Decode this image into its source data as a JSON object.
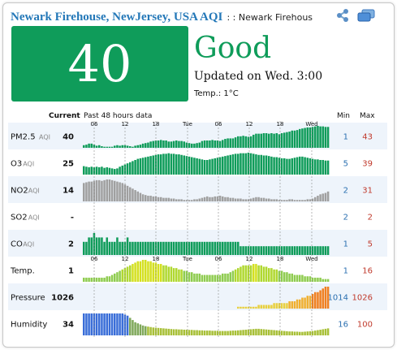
{
  "header": {
    "title": "Newark Firehouse, NewJersey, USA AQI",
    "subtitle": ": : Newark Firehous"
  },
  "current": {
    "aqi": "40",
    "level": "Good",
    "updated": "Updated on Wed. 3:00",
    "temperature": "Temp.: 1°C",
    "color": "#0f9c5a"
  },
  "table": {
    "current_label": "Current",
    "past_label": "Past 48 hours data",
    "min_label": "Min",
    "max_label": "Max",
    "ticks": [
      "06",
      "12",
      "18",
      "Tue",
      "06",
      "12",
      "18",
      "Wed"
    ],
    "rows": [
      {
        "name": "PM2.5",
        "sub": "AQI",
        "value": "40",
        "min": "1",
        "max": "43",
        "color": "#0f9c5a",
        "bars": [
          5,
          6,
          8,
          8,
          6,
          4,
          5,
          3,
          2,
          2,
          2,
          2,
          4,
          5,
          4,
          5,
          5,
          4,
          3,
          2,
          4,
          5,
          6,
          8,
          9,
          10,
          12,
          13,
          14,
          14,
          15,
          14,
          14,
          12,
          12,
          13,
          14,
          13,
          13,
          12,
          10,
          9,
          8,
          8,
          9,
          10,
          13,
          14,
          14,
          14,
          15,
          14,
          14,
          13,
          15,
          17,
          18,
          18,
          18,
          20,
          22,
          22,
          23,
          22,
          21,
          22,
          25,
          27,
          27,
          27,
          28,
          28,
          27,
          28,
          27,
          28,
          26,
          28,
          29,
          30,
          31,
          33,
          33,
          34,
          36,
          37,
          38,
          39,
          39,
          40,
          41,
          42,
          41,
          41,
          40,
          40
        ]
      },
      {
        "name": "O3",
        "sub": "AQI",
        "value": "25",
        "min": "5",
        "max": "39",
        "color": "#0f9c5a",
        "bars": [
          15,
          14,
          13,
          14,
          13,
          14,
          13,
          14,
          12,
          13,
          12,
          11,
          10,
          11,
          14,
          16,
          18,
          20,
          22,
          24,
          26,
          28,
          29,
          30,
          31,
          32,
          33,
          34,
          35,
          36,
          36,
          37,
          37,
          38,
          37,
          37,
          36,
          36,
          35,
          34,
          33,
          32,
          31,
          30,
          29,
          28,
          27,
          26,
          26,
          27,
          28,
          29,
          30,
          31,
          32,
          33,
          34,
          35,
          36,
          37,
          37,
          38,
          38,
          38,
          39,
          38,
          37,
          36,
          35,
          35,
          34,
          34,
          33,
          32,
          31,
          31,
          30,
          29,
          29,
          28,
          28,
          29,
          30,
          31,
          32,
          32,
          31,
          30,
          29,
          28,
          27,
          27,
          26,
          26,
          25,
          25
        ]
      },
      {
        "name": "NO2",
        "sub": "AQI",
        "value": "14",
        "min": "2",
        "max": "31",
        "color": "#a0a0a0",
        "bars": [
          26,
          27,
          28,
          28,
          29,
          30,
          30,
          29,
          30,
          31,
          31,
          30,
          29,
          28,
          27,
          26,
          24,
          22,
          20,
          18,
          16,
          14,
          12,
          10,
          9,
          8,
          8,
          7,
          7,
          6,
          6,
          5,
          5,
          5,
          4,
          4,
          3,
          3,
          3,
          2,
          2,
          2,
          2,
          3,
          3,
          4,
          5,
          6,
          7,
          6,
          6,
          7,
          7,
          8,
          7,
          6,
          6,
          5,
          5,
          4,
          4,
          4,
          3,
          3,
          3,
          4,
          5,
          6,
          6,
          5,
          5,
          4,
          4,
          3,
          3,
          3,
          2,
          2,
          2,
          2,
          3,
          3,
          2,
          2,
          2,
          2,
          2,
          3,
          3,
          4,
          6,
          8,
          10,
          11,
          12,
          14
        ]
      },
      {
        "name": "SO2",
        "sub": "AQI",
        "value": "-",
        "min": "2",
        "max": "2",
        "color": "#a0a0a0",
        "bars": []
      },
      {
        "name": "CO",
        "sub": "AQI",
        "value": "2",
        "min": "1",
        "max": "5",
        "color": "#0f9c5a",
        "bars": [
          3,
          3,
          4,
          4,
          5,
          4,
          4,
          4,
          3,
          4,
          3,
          3,
          3,
          4,
          3,
          3,
          3,
          4,
          3,
          3,
          3,
          3,
          3,
          3,
          3,
          3,
          3,
          3,
          3,
          3,
          3,
          3,
          3,
          3,
          3,
          3,
          3,
          3,
          3,
          3,
          3,
          3,
          3,
          3,
          3,
          3,
          3,
          3,
          3,
          3,
          3,
          3,
          3,
          3,
          3,
          3,
          3,
          3,
          3,
          3,
          3,
          2,
          2,
          2,
          2,
          2,
          2,
          2,
          2,
          2,
          2,
          2,
          2,
          2,
          2,
          2,
          2,
          2,
          2,
          2,
          2,
          2,
          2,
          2,
          2,
          2,
          2,
          2,
          2,
          2,
          2,
          2,
          2,
          2,
          2,
          2
        ]
      },
      {
        "name": "Temp.",
        "sub": "",
        "value": "1",
        "min": "1",
        "max": "16",
        "color": "#9bd24a",
        "bars": [
          3,
          3,
          3,
          3,
          3,
          3,
          3,
          3,
          3,
          4,
          4,
          5,
          6,
          7,
          8,
          9,
          10,
          11,
          12,
          13,
          14,
          15,
          15,
          16,
          16,
          15,
          15,
          14,
          14,
          13,
          13,
          12,
          12,
          11,
          11,
          10,
          10,
          9,
          9,
          8,
          8,
          7,
          7,
          6,
          6,
          6,
          5,
          5,
          5,
          5,
          5,
          5,
          5,
          5,
          6,
          6,
          6,
          7,
          8,
          9,
          10,
          11,
          12,
          12,
          12,
          12,
          13,
          13,
          12,
          12,
          11,
          11,
          10,
          10,
          9,
          9,
          8,
          8,
          7,
          7,
          6,
          6,
          5,
          5,
          5,
          5,
          4,
          4,
          4,
          3,
          3,
          3,
          3,
          2,
          2,
          2
        ]
      },
      {
        "name": "Pressure",
        "sub": "",
        "value": "1026",
        "min": "1014",
        "max": "1026",
        "color": "#f0a030",
        "bars": [
          0,
          0,
          0,
          0,
          0,
          0,
          0,
          0,
          0,
          0,
          0,
          0,
          0,
          0,
          0,
          0,
          0,
          0,
          0,
          0,
          0,
          0,
          0,
          0,
          0,
          0,
          0,
          0,
          0,
          0,
          0,
          0,
          0,
          0,
          0,
          0,
          0,
          0,
          0,
          0,
          0,
          0,
          0,
          0,
          0,
          0,
          0,
          0,
          0,
          0,
          0,
          0,
          0,
          0,
          0,
          0,
          0,
          0,
          0,
          0,
          1,
          1,
          1,
          1,
          1,
          1,
          1,
          1,
          2,
          2,
          2,
          2,
          2,
          2,
          3,
          3,
          3,
          3,
          3,
          3,
          4,
          4,
          4,
          5,
          5,
          6,
          6,
          7,
          7,
          8,
          9,
          9,
          10,
          11,
          12,
          12
        ]
      },
      {
        "name": "Humidity",
        "sub": "",
        "value": "34",
        "min": "16",
        "max": "100",
        "color": "#3a6ed8",
        "bars": [
          100,
          100,
          100,
          100,
          100,
          100,
          100,
          100,
          100,
          100,
          100,
          100,
          100,
          100,
          100,
          100,
          95,
          90,
          80,
          70,
          60,
          55,
          50,
          45,
          42,
          40,
          38,
          36,
          35,
          34,
          33,
          32,
          31,
          30,
          29,
          28,
          28,
          27,
          27,
          26,
          26,
          25,
          25,
          24,
          24,
          23,
          23,
          22,
          22,
          22,
          21,
          21,
          21,
          20,
          20,
          20,
          20,
          21,
          22,
          22,
          23,
          24,
          25,
          26,
          27,
          28,
          29,
          30,
          30,
          29,
          28,
          27,
          26,
          25,
          24,
          23,
          22,
          21,
          20,
          19,
          18,
          18,
          17,
          17,
          16,
          16,
          17,
          18,
          19,
          20,
          22,
          24,
          26,
          28,
          30,
          32
        ]
      }
    ]
  }
}
